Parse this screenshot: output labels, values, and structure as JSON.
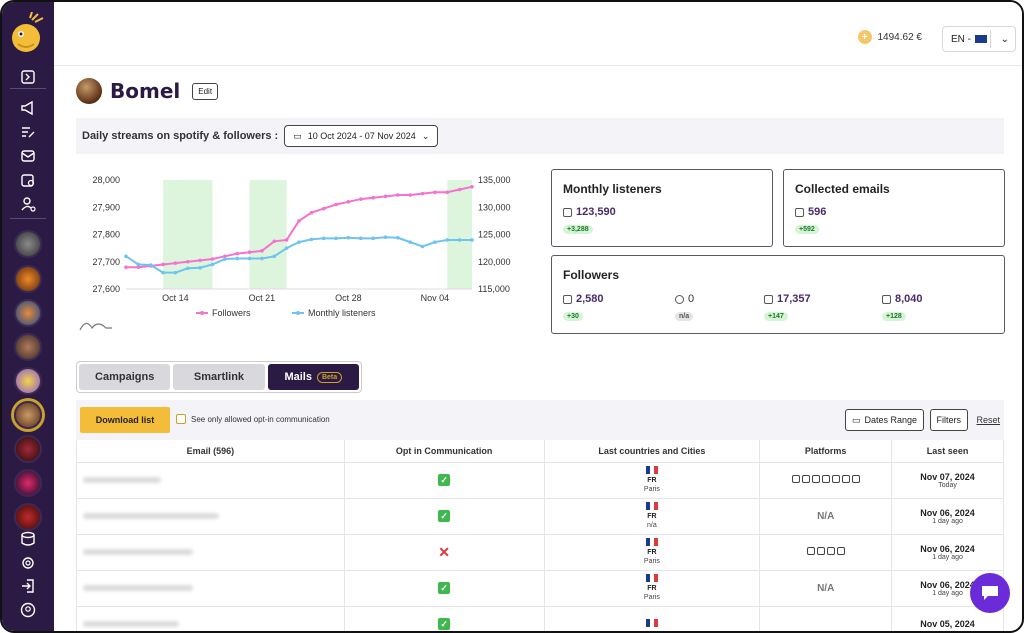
{
  "topbar": {
    "balance": "1494.62 €",
    "language": "EN -"
  },
  "artist": {
    "name": "Bomel",
    "edit_label": "Edit"
  },
  "streams": {
    "label": "Daily streams on spotify & followers :",
    "date_range": "10 Oct 2024 - 07 Nov 2024"
  },
  "chart_data": {
    "type": "line",
    "x": [
      "Oct 10",
      "Oct 11",
      "Oct 12",
      "Oct 13",
      "Oct 14",
      "Oct 15",
      "Oct 16",
      "Oct 17",
      "Oct 18",
      "Oct 19",
      "Oct 20",
      "Oct 21",
      "Oct 22",
      "Oct 23",
      "Oct 24",
      "Oct 25",
      "Oct 26",
      "Oct 27",
      "Oct 28",
      "Oct 29",
      "Oct 30",
      "Oct 31",
      "Nov 01",
      "Nov 02",
      "Nov 03",
      "Nov 04",
      "Nov 05",
      "Nov 06",
      "Nov 07"
    ],
    "xticks": [
      "Oct 14",
      "Oct 21",
      "Oct 28",
      "Nov 04"
    ],
    "series": [
      {
        "name": "Followers",
        "axis": "left",
        "color": "#f472d0",
        "values": [
          27680,
          27680,
          27685,
          27690,
          27695,
          27700,
          27705,
          27710,
          27720,
          27730,
          27735,
          27740,
          27775,
          27780,
          27850,
          27880,
          27895,
          27910,
          27920,
          27930,
          27935,
          27940,
          27945,
          27945,
          27950,
          27955,
          27955,
          27965,
          27975
        ]
      },
      {
        "name": "Monthly listeners",
        "axis": "right",
        "color": "#6fc3f0",
        "values": [
          121000,
          119500,
          119400,
          118000,
          118000,
          118800,
          118900,
          119500,
          120500,
          120600,
          120600,
          120600,
          121000,
          122500,
          123600,
          124100,
          124300,
          124300,
          124400,
          124300,
          124300,
          124500,
          124400,
          123600,
          122800,
          123600,
          124000,
          124000,
          124000
        ]
      }
    ],
    "y_left": {
      "ticks": [
        "28,000",
        "27,900",
        "27,800",
        "27,700",
        "27,600"
      ],
      "range": [
        27600,
        28000
      ]
    },
    "y_right": {
      "ticks": [
        "135,000",
        "130,000",
        "125,000",
        "120,000",
        "115,000"
      ],
      "range": [
        115000,
        135000
      ]
    },
    "highlight_bands": [
      [
        "Oct 13",
        "Oct 17"
      ],
      [
        "Oct 20",
        "Oct 23"
      ],
      [
        "Nov 05",
        "Nov 07"
      ]
    ]
  },
  "cards": {
    "monthly": {
      "title": "Monthly listeners",
      "value": "123,590",
      "delta": "+3,288"
    },
    "emails": {
      "title": "Collected emails",
      "value": "596",
      "delta": "+592"
    },
    "followers": {
      "title": "Followers",
      "items": [
        {
          "icon": "youtube-icon",
          "value": "2,580",
          "delta": "+30"
        },
        {
          "icon": "facebook-icon",
          "value": "0",
          "delta": "n/a"
        },
        {
          "icon": "instagram-icon",
          "value": "17,357",
          "delta": "+147"
        },
        {
          "icon": "spotify-icon",
          "value": "8,040",
          "delta": "+128"
        }
      ]
    }
  },
  "tabs": {
    "campaigns": "Campaigns",
    "smartlink": "Smartlink",
    "mails": "Mails",
    "beta": "Beta"
  },
  "list": {
    "download": "Download list",
    "optin_label": "See only allowed opt-in communication",
    "dates_range": "Dates Range",
    "filters": "Filters",
    "reset": "Reset"
  },
  "table": {
    "headers": [
      "Email (596)",
      "Opt in Communication",
      "Last countries and Cities",
      "Platforms",
      "Last seen"
    ],
    "rows": [
      {
        "optin": true,
        "country": "FR",
        "city": "Paris",
        "platforms": 7,
        "date": "Nov 07, 2024",
        "rel": "Today"
      },
      {
        "optin": true,
        "country": "FR",
        "city": "n/a",
        "platforms": 0,
        "platforms_na": "N/A",
        "date": "Nov 06, 2024",
        "rel": "1 day ago"
      },
      {
        "optin": false,
        "country": "FR",
        "city": "Paris",
        "platforms": 4,
        "date": "Nov 06, 2024",
        "rel": "1 day ago"
      },
      {
        "optin": true,
        "country": "FR",
        "city": "Paris",
        "platforms": 0,
        "platforms_na": "N/A",
        "date": "Nov 06, 2024",
        "rel": "1 day ago"
      },
      {
        "optin": true,
        "country": "",
        "city": "",
        "platforms": 0,
        "date": "Nov 05, 2024",
        "rel": ""
      }
    ]
  }
}
